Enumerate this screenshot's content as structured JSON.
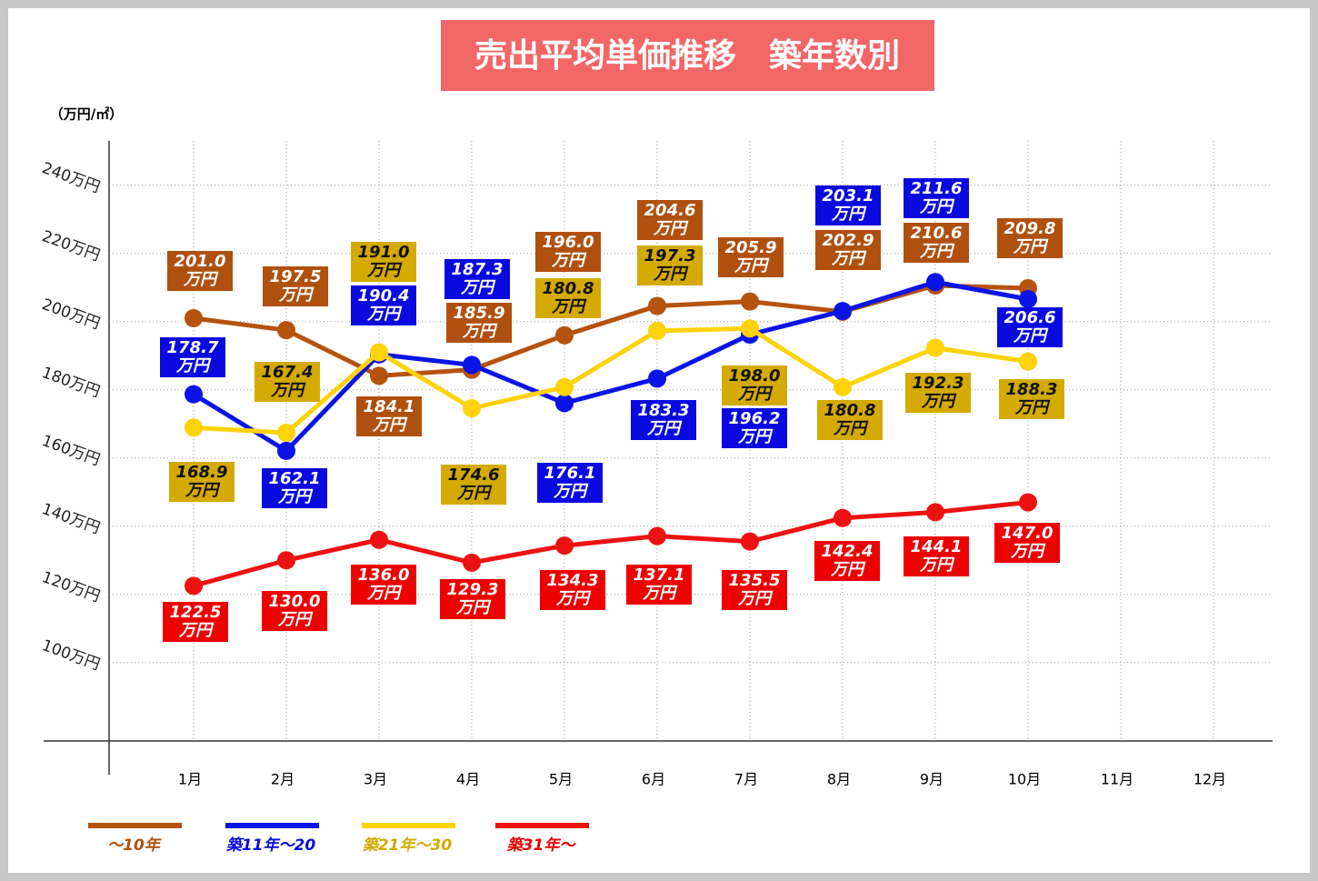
{
  "chart_data": {
    "type": "line",
    "title": "売出平均単価推移　築年数別",
    "y_axis_label": "（万円/㎡）",
    "categories": [
      "1月",
      "2月",
      "3月",
      "4月",
      "5月",
      "6月",
      "7月",
      "8月",
      "9月",
      "10月",
      "11月",
      "12月"
    ],
    "ylim": [
      77,
      253
    ],
    "yticks": [
      {
        "value": 100,
        "label": "100万円"
      },
      {
        "value": 120,
        "label": "120万円"
      },
      {
        "value": 140,
        "label": "140万円"
      },
      {
        "value": 160,
        "label": "160万円"
      },
      {
        "value": 180,
        "label": "180万円"
      },
      {
        "value": 200,
        "label": "200万円"
      },
      {
        "value": 220,
        "label": "220万円"
      },
      {
        "value": 240,
        "label": "240万円"
      }
    ],
    "grid": true,
    "legend": "bottom",
    "series": [
      {
        "name": "～10年",
        "color": "#b5520e",
        "label_text": "#ffffff",
        "values": [
          201.0,
          197.5,
          184.1,
          185.9,
          196.0,
          204.6,
          205.9,
          202.9,
          210.6,
          209.8,
          null,
          null
        ],
        "value_labels": [
          "201.0万円",
          "197.5万円",
          "184.1万円",
          "185.9万円",
          "196.0万円",
          "204.6万円",
          "205.9万円",
          "202.9万円",
          "210.6万円",
          "209.8万円",
          null,
          null
        ]
      },
      {
        "name": "築11年～20",
        "color": "#0a14e6",
        "label_text": "#ffffff",
        "values": [
          178.7,
          162.1,
          190.4,
          187.3,
          176.1,
          183.3,
          196.2,
          203.1,
          211.6,
          206.6,
          null,
          null
        ],
        "value_labels": [
          "178.7万円",
          "162.1万円",
          "190.4万円",
          "187.3万円",
          "176.1万円",
          "183.3万円",
          "196.2万円",
          "203.1万円",
          "211.6万円",
          "206.6万円",
          null,
          null
        ]
      },
      {
        "name": "築21年～30",
        "color": "#ffd20a",
        "label_text": "#111111",
        "values": [
          168.9,
          167.4,
          191.0,
          174.6,
          180.8,
          197.3,
          198.0,
          180.8,
          192.3,
          188.3,
          null,
          null
        ],
        "value_labels": [
          "168.9万円",
          "167.4万円",
          "191.0万円",
          "174.6万円",
          "180.8万円",
          "197.3万円",
          "198.0万円",
          "180.8万円",
          "192.3万円",
          "188.3万円",
          null,
          null
        ]
      },
      {
        "name": "築31年～",
        "color": "#ee1111",
        "label_text": "#ffffff",
        "values": [
          122.5,
          130.0,
          136.0,
          129.3,
          134.3,
          137.1,
          135.5,
          142.4,
          144.1,
          147.0,
          null,
          null
        ],
        "value_labels": [
          "122.5万円",
          "130.0万円",
          "136.0万円",
          "129.3万円",
          "134.3万円",
          "137.1万円",
          "135.5万円",
          "142.4万円",
          "144.1万円",
          "147.0万円",
          null,
          null
        ]
      }
    ]
  }
}
